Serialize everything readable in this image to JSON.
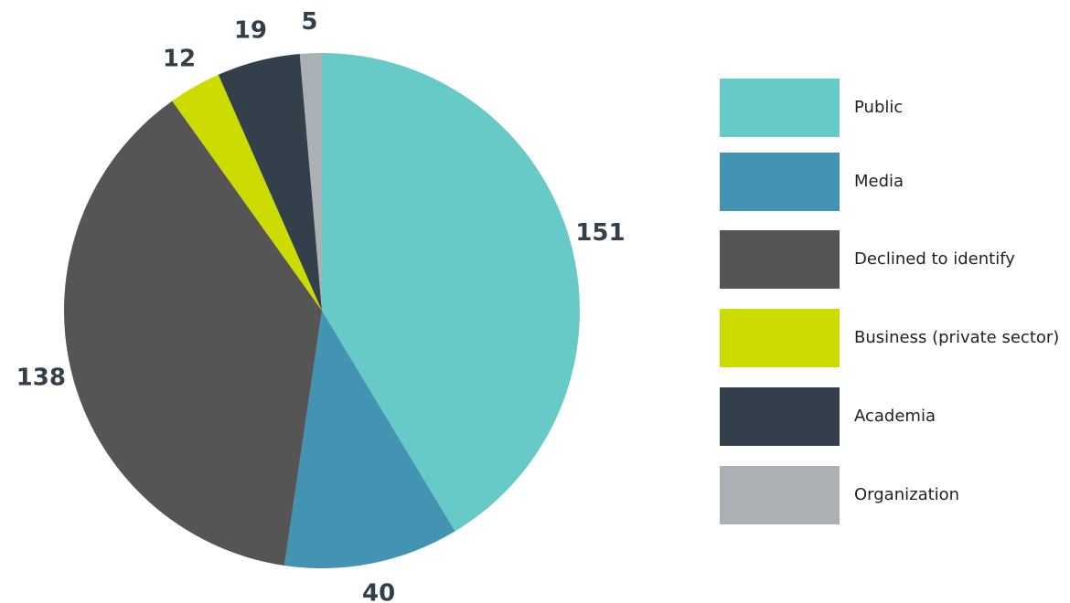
{
  "chart_data": {
    "type": "pie",
    "categories": [
      "Public",
      "Media",
      "Declined to identify",
      "Business (private sector)",
      "Academia",
      "Organization"
    ],
    "values": [
      151,
      40,
      138,
      12,
      19,
      5
    ],
    "colors": [
      "#68cac7",
      "#4394b3",
      "#555555",
      "#cddc00",
      "#333f4a",
      "#aab0b4"
    ],
    "legend": "right"
  }
}
